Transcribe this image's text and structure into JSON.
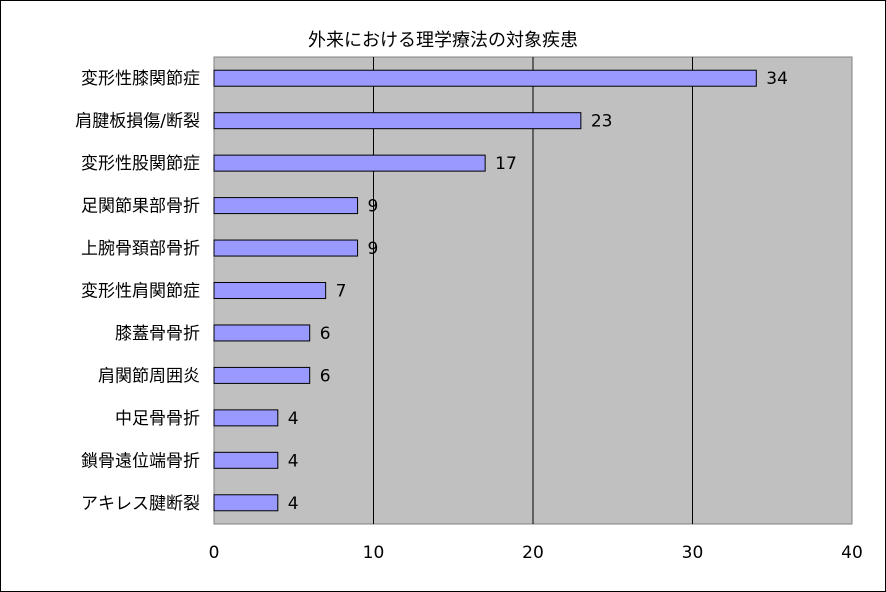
{
  "chart_data": {
    "type": "bar",
    "orientation": "horizontal",
    "title": "外来における理学療法の対象疾患",
    "xlabel": "",
    "ylabel": "",
    "xlim": [
      0,
      40
    ],
    "xticks": [
      0,
      10,
      20,
      30,
      40
    ],
    "grid": true,
    "categories": [
      "変形性膝関節症",
      "肩腱板損傷/断裂",
      "変形性股関節症",
      "足関節果部骨折",
      "上腕骨頚部骨折",
      "変形性肩関節症",
      "膝蓋骨骨折",
      "肩関節周囲炎",
      "中足骨骨折",
      "鎖骨遠位端骨折",
      "アキレス腱断裂"
    ],
    "values": [
      34,
      23,
      17,
      9,
      9,
      7,
      6,
      6,
      4,
      4,
      4
    ],
    "colors": {
      "bar_fill": "#9999ff",
      "bar_stroke": "#000000",
      "plot_background": "#c0c0c0",
      "gridline": "#000000"
    }
  }
}
